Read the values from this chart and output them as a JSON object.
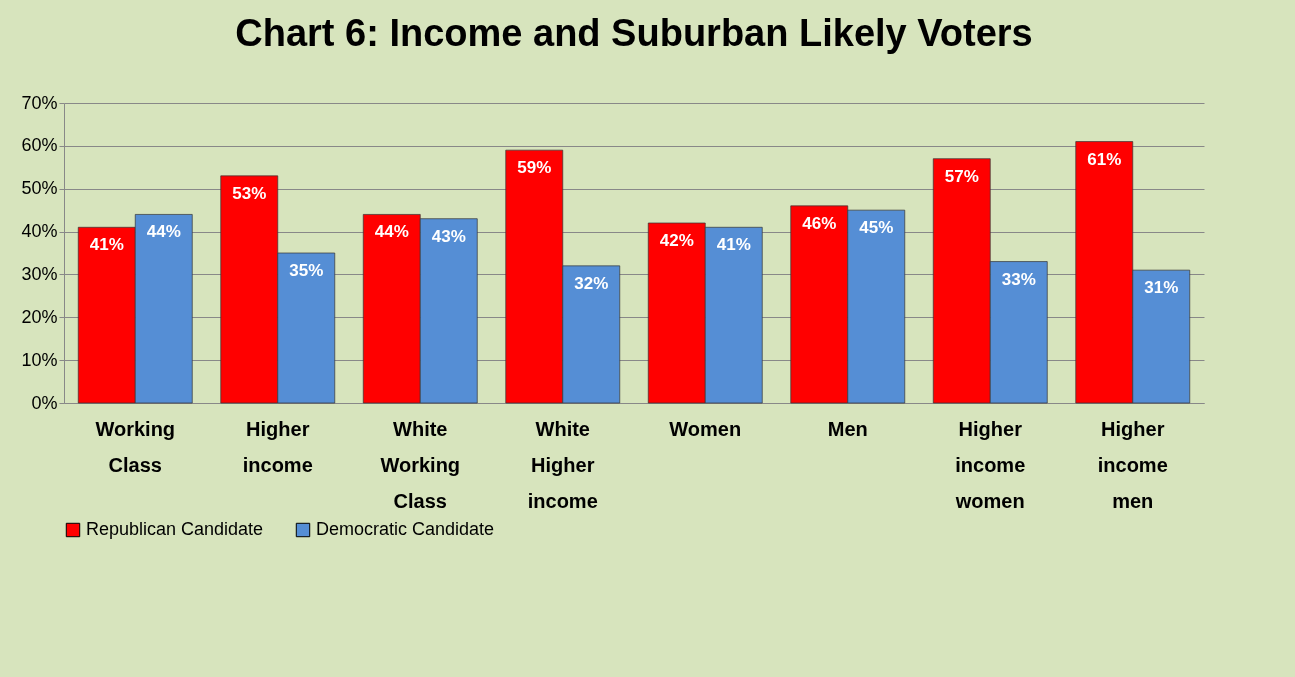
{
  "chart_data": {
    "type": "bar",
    "title": "Chart 6: Income and Suburban Likely Voters",
    "categories": [
      "Working Class",
      "Higher income",
      "White Working Class",
      "White Higher income",
      "Women",
      "Men",
      "Higher income women",
      "Higher income men"
    ],
    "series": [
      {
        "name": "Republican Candidate",
        "color": "#ff0000",
        "values": [
          41,
          53,
          44,
          59,
          42,
          46,
          57,
          61
        ],
        "value_labels": [
          "41%",
          "53%",
          "44%",
          "59%",
          "42%",
          "46%",
          "57%",
          "61%"
        ]
      },
      {
        "name": "Democratic Candidate",
        "color": "#558ed5",
        "values": [
          44,
          35,
          43,
          32,
          41,
          45,
          33,
          31
        ],
        "value_labels": [
          "44%",
          "35%",
          "43%",
          "32%",
          "41%",
          "45%",
          "33%",
          "31%"
        ]
      }
    ],
    "ylim": [
      0,
      70
    ],
    "yticks": [
      {
        "value": 0,
        "label": "0%"
      },
      {
        "value": 10,
        "label": "10%"
      },
      {
        "value": 20,
        "label": "20%"
      },
      {
        "value": 30,
        "label": "30%"
      },
      {
        "value": 40,
        "label": "40%"
      },
      {
        "value": 50,
        "label": "50%"
      },
      {
        "value": 60,
        "label": "60%"
      },
      {
        "value": 70,
        "label": "70%"
      }
    ],
    "grid": "y",
    "legend": "bottom"
  }
}
